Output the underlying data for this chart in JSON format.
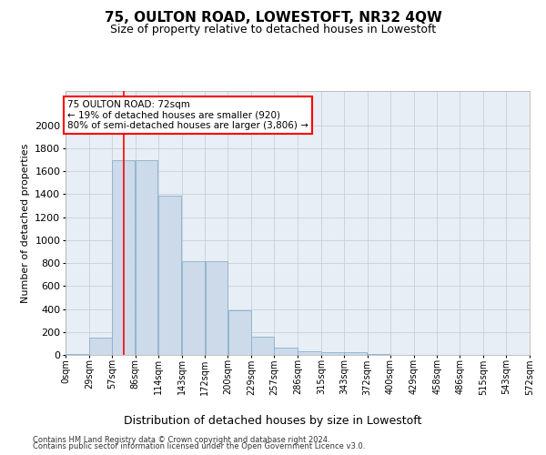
{
  "title": "75, OULTON ROAD, LOWESTOFT, NR32 4QW",
  "subtitle": "Size of property relative to detached houses in Lowestoft",
  "xlabel": "Distribution of detached houses by size in Lowestoft",
  "ylabel": "Number of detached properties",
  "footnote1": "Contains HM Land Registry data © Crown copyright and database right 2024.",
  "footnote2": "Contains public sector information licensed under the Open Government Licence v3.0.",
  "bin_edges": [
    0,
    29,
    57,
    86,
    114,
    143,
    172,
    200,
    229,
    257,
    286,
    315,
    343,
    372,
    400,
    429,
    458,
    486,
    515,
    543,
    572
  ],
  "bar_heights": [
    10,
    150,
    1700,
    1700,
    1390,
    820,
    820,
    390,
    160,
    60,
    30,
    25,
    25,
    5,
    0,
    0,
    0,
    0,
    0,
    0
  ],
  "bar_color": "#ccdaea",
  "bar_edge_color": "#8ab0cc",
  "tick_labels": [
    "0sqm",
    "29sqm",
    "57sqm",
    "86sqm",
    "114sqm",
    "143sqm",
    "172sqm",
    "200sqm",
    "229sqm",
    "257sqm",
    "286sqm",
    "315sqm",
    "343sqm",
    "372sqm",
    "400sqm",
    "429sqm",
    "458sqm",
    "486sqm",
    "515sqm",
    "543sqm",
    "572sqm"
  ],
  "ylim": [
    0,
    2300
  ],
  "yticks": [
    0,
    200,
    400,
    600,
    800,
    1000,
    1200,
    1400,
    1600,
    1800,
    2000
  ],
  "redline_x": 72,
  "annotation_line1": "75 OULTON ROAD: 72sqm",
  "annotation_line2": "← 19% of detached houses are smaller (920)",
  "annotation_line3": "80% of semi-detached houses are larger (3,806) →",
  "bg_color": "#e8eef5",
  "grid_color": "#c5d0db",
  "title_fontsize": 11,
  "subtitle_fontsize": 9,
  "ylabel_fontsize": 8,
  "xlabel_fontsize": 9,
  "ytick_fontsize": 8,
  "xtick_fontsize": 7,
  "ann_fontsize": 7.5,
  "footnote_fontsize": 6
}
